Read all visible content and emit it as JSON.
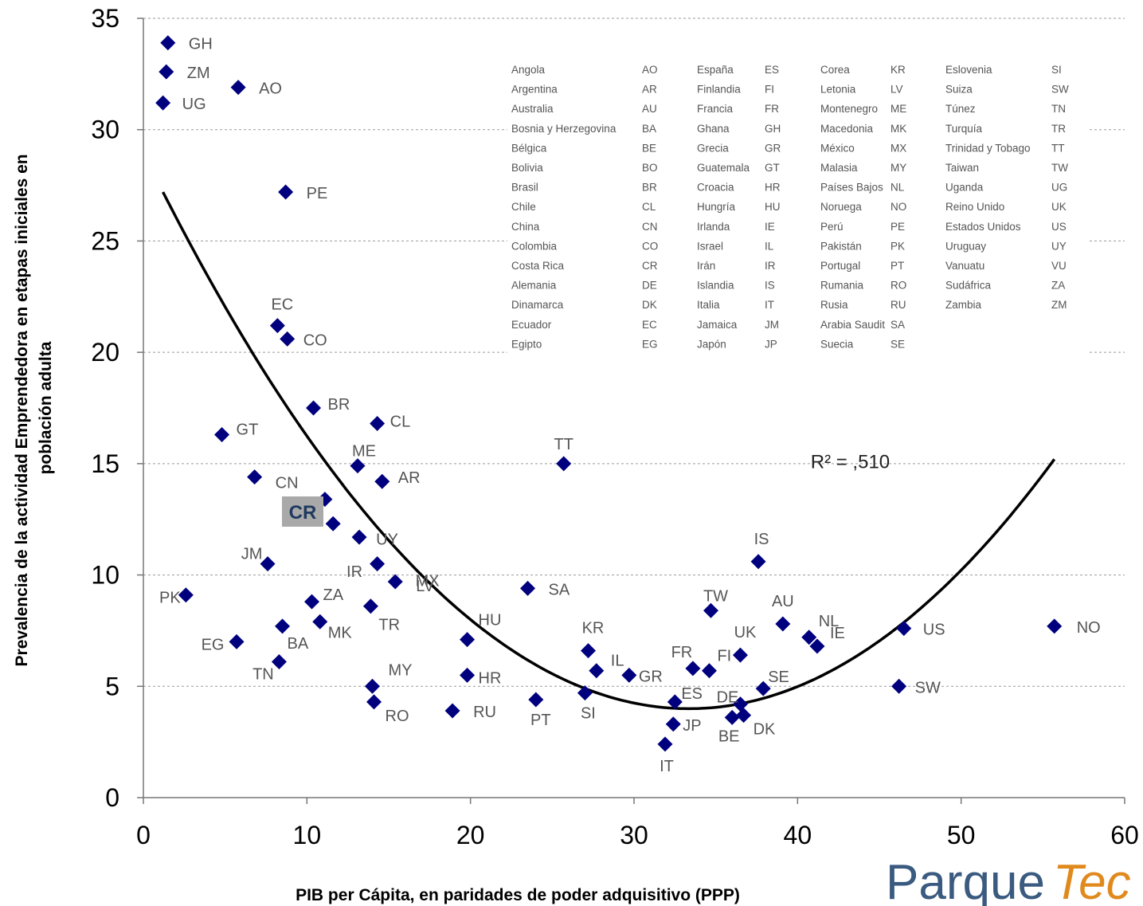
{
  "chart_data": {
    "type": "scatter",
    "title": "",
    "xlabel": "PIB per Cápita, en paridades de poder adquisitivo (PPP)",
    "ylabel": "Prevalencia de la actividad Emprendedora  en etapas iniciales en población adulta",
    "xlim": [
      0,
      60
    ],
    "ylim": [
      0,
      35
    ],
    "x_ticks": [
      "0",
      "10",
      "20",
      "30",
      "40",
      "50",
      "60"
    ],
    "y_ticks": [
      "0",
      "5",
      "10",
      "15",
      "20",
      "25",
      "30",
      "35"
    ],
    "grid": "horizontal-dashed",
    "marker_color": "#00007f",
    "points": [
      {
        "label": "GH",
        "x": 1.5,
        "y": 33.9
      },
      {
        "label": "ZM",
        "x": 1.4,
        "y": 32.6
      },
      {
        "label": "AO",
        "x": 5.8,
        "y": 31.9
      },
      {
        "label": "UG",
        "x": 1.2,
        "y": 31.2
      },
      {
        "label": "PE",
        "x": 8.7,
        "y": 27.2
      },
      {
        "label": "EC",
        "x": 8.2,
        "y": 21.2
      },
      {
        "label": "CO",
        "x": 8.8,
        "y": 20.6
      },
      {
        "label": "BR",
        "x": 10.4,
        "y": 17.5
      },
      {
        "label": "GT",
        "x": 4.8,
        "y": 16.3
      },
      {
        "label": "CL",
        "x": 14.3,
        "y": 16.8
      },
      {
        "label": "ME",
        "x": 13.1,
        "y": 14.9
      },
      {
        "label": "CN",
        "x": 6.8,
        "y": 14.4
      },
      {
        "label": "AR",
        "x": 14.6,
        "y": 14.2
      },
      {
        "label": "CR",
        "x": 11.1,
        "y": 13.4
      },
      {
        "label": "UY",
        "x": 11.6,
        "y": 12.3
      },
      {
        "label": "IR",
        "x": 13.2,
        "y": 11.7
      },
      {
        "label": "MX",
        "x": 14.3,
        "y": 10.5
      },
      {
        "label": "JM",
        "x": 7.6,
        "y": 10.5
      },
      {
        "label": "LV",
        "x": 15.4,
        "y": 9.7
      },
      {
        "label": "PK",
        "x": 2.6,
        "y": 9.1
      },
      {
        "label": "ZA",
        "x": 10.3,
        "y": 8.8
      },
      {
        "label": "TR",
        "x": 13.9,
        "y": 8.6
      },
      {
        "label": "MK",
        "x": 10.8,
        "y": 7.9
      },
      {
        "label": "BA",
        "x": 8.5,
        "y": 7.7
      },
      {
        "label": "EG",
        "x": 5.7,
        "y": 7.0
      },
      {
        "label": "TN",
        "x": 8.3,
        "y": 6.1
      },
      {
        "label": "MY",
        "x": 14.0,
        "y": 5.0
      },
      {
        "label": "RO",
        "x": 14.1,
        "y": 4.3
      },
      {
        "label": "RU",
        "x": 18.9,
        "y": 3.9
      },
      {
        "label": "HU",
        "x": 19.8,
        "y": 7.1
      },
      {
        "label": "HR",
        "x": 19.8,
        "y": 5.5
      },
      {
        "label": "SA",
        "x": 23.5,
        "y": 9.4
      },
      {
        "label": "TT",
        "x": 25.7,
        "y": 15.0
      },
      {
        "label": "PT",
        "x": 24.0,
        "y": 4.4
      },
      {
        "label": "KR",
        "x": 27.2,
        "y": 6.6
      },
      {
        "label": "IL",
        "x": 27.7,
        "y": 5.7
      },
      {
        "label": "SI",
        "x": 27.0,
        "y": 4.7
      },
      {
        "label": "GR",
        "x": 29.7,
        "y": 5.5
      },
      {
        "label": "FR",
        "x": 33.6,
        "y": 5.8
      },
      {
        "label": "FI",
        "x": 34.6,
        "y": 5.7
      },
      {
        "label": "ES",
        "x": 32.5,
        "y": 4.3
      },
      {
        "label": "JP",
        "x": 32.4,
        "y": 3.3
      },
      {
        "label": "IT",
        "x": 31.9,
        "y": 2.4
      },
      {
        "label": "UK",
        "x": 36.5,
        "y": 6.4
      },
      {
        "label": "TW",
        "x": 34.7,
        "y": 8.4
      },
      {
        "label": "IS",
        "x": 37.6,
        "y": 10.6
      },
      {
        "label": "AU",
        "x": 39.1,
        "y": 7.8
      },
      {
        "label": "NL",
        "x": 40.7,
        "y": 7.2
      },
      {
        "label": "IE",
        "x": 41.2,
        "y": 6.8
      },
      {
        "label": "SE",
        "x": 37.9,
        "y": 4.9
      },
      {
        "label": "DE",
        "x": 36.5,
        "y": 4.2
      },
      {
        "label": "BE",
        "x": 36.0,
        "y": 3.6
      },
      {
        "label": "DK",
        "x": 36.7,
        "y": 3.7
      },
      {
        "label": "US",
        "x": 46.5,
        "y": 7.6
      },
      {
        "label": "SW",
        "x": 46.2,
        "y": 5.0
      },
      {
        "label": "NO",
        "x": 55.7,
        "y": 7.7
      }
    ],
    "trendline": {
      "type": "quadratic",
      "x_range": [
        1.2,
        55.7
      ],
      "control_points": [
        {
          "x": 1.2,
          "y": 27.2
        },
        {
          "x": 33.8,
          "y": 4.0
        },
        {
          "x": 55.7,
          "y": 15.2
        }
      ],
      "annotation": "R² =  ,510"
    },
    "highlight": {
      "label": "CR"
    },
    "legend": {
      "placement": "top-right",
      "columns": [
        [
          [
            "Angola",
            "AO"
          ],
          [
            "Argentina",
            "AR"
          ],
          [
            "Australia",
            "AU"
          ],
          [
            "Bosnia y Herzegovina",
            "BA"
          ],
          [
            "Bélgica",
            "BE"
          ],
          [
            "Bolivia",
            "BO"
          ],
          [
            "Brasil",
            "BR"
          ],
          [
            "Chile",
            "CL"
          ],
          [
            "China",
            "CN"
          ],
          [
            "Colombia",
            "CO"
          ],
          [
            "Costa Rica",
            "CR"
          ],
          [
            "Alemania",
            "DE"
          ],
          [
            "Dinamarca",
            "DK"
          ],
          [
            "Ecuador",
            "EC"
          ],
          [
            "Egipto",
            "EG"
          ]
        ],
        [
          [
            "España",
            "ES"
          ],
          [
            "Finlandia",
            "FI"
          ],
          [
            "Francia",
            "FR"
          ],
          [
            "Ghana",
            "GH"
          ],
          [
            "Grecia",
            "GR"
          ],
          [
            "Guatemala",
            "GT"
          ],
          [
            "Croacia",
            "HR"
          ],
          [
            "Hungría",
            "HU"
          ],
          [
            "Irlanda",
            "IE"
          ],
          [
            "Israel",
            "IL"
          ],
          [
            "Irán",
            "IR"
          ],
          [
            "Islandia",
            "IS"
          ],
          [
            "Italia",
            "IT"
          ],
          [
            "Jamaica",
            "JM"
          ],
          [
            "Japón",
            "JP"
          ]
        ],
        [
          [
            "Corea",
            "KR"
          ],
          [
            "Letonia",
            "LV"
          ],
          [
            "Montenegro",
            "ME"
          ],
          [
            "Macedonia",
            "MK"
          ],
          [
            "México",
            "MX"
          ],
          [
            "Malasia",
            "MY"
          ],
          [
            "Países Bajos",
            "NL"
          ],
          [
            "Noruega",
            "NO"
          ],
          [
            "Perú",
            "PE"
          ],
          [
            "Pakistán",
            "PK"
          ],
          [
            "Portugal",
            "PT"
          ],
          [
            "Rumania",
            "RO"
          ],
          [
            "Rusia",
            "RU"
          ],
          [
            "Arabia Saudit",
            "SA"
          ],
          [
            "Suecia",
            "SE"
          ]
        ],
        [
          [
            "Eslovenia",
            "SI"
          ],
          [
            "Suiza",
            "SW"
          ],
          [
            "Túnez",
            "TN"
          ],
          [
            "Turquía",
            "TR"
          ],
          [
            "Trinidad y Tobago",
            "TT"
          ],
          [
            "Taiwan",
            "TW"
          ],
          [
            "Uganda",
            "UG"
          ],
          [
            "Reino Unido",
            "UK"
          ],
          [
            "Estados Unidos",
            "US"
          ],
          [
            "Uruguay",
            "UY"
          ],
          [
            "Vanuatu",
            "VU"
          ],
          [
            "Sudáfrica",
            "ZA"
          ],
          [
            "Zambia",
            "ZM"
          ]
        ]
      ]
    }
  },
  "logo": {
    "part1": "Parque",
    "part2": "Tec"
  }
}
